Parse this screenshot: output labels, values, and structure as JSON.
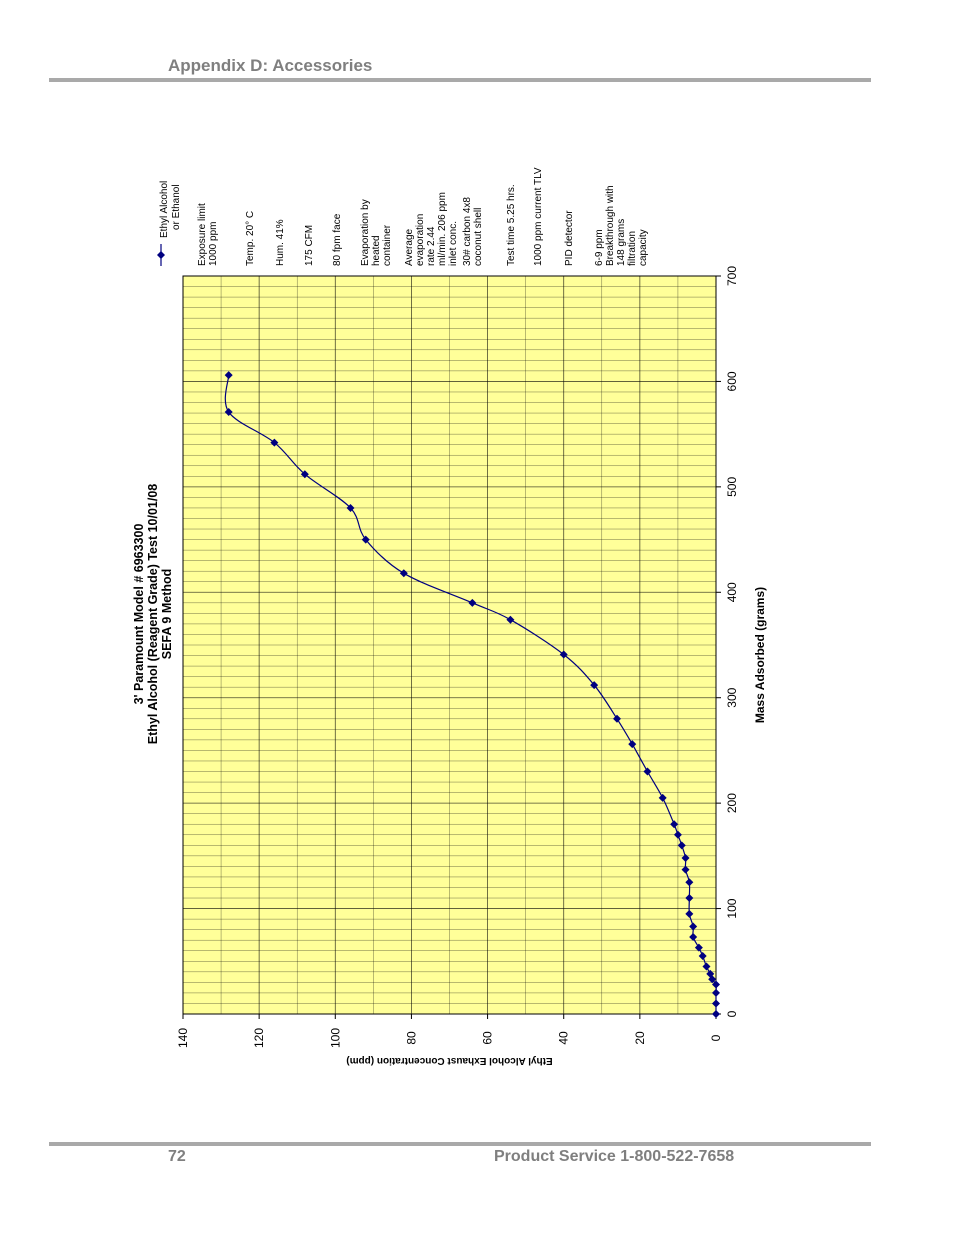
{
  "header": {
    "title": "Appendix D: Accessories"
  },
  "footer": {
    "page_number": "72",
    "service": "Product Service 1-800-522-7658"
  },
  "chart_data": {
    "type": "line",
    "title": [
      "3' Paramount Model # 6963300",
      "Ethyl Alcohol (Reagent Grade) Test  10/01/08",
      "SEFA 9 Method"
    ],
    "xlabel": "Mass Adsorbed (grams)",
    "ylabel": "Ethyl Alcohol Exhaust Concentration (ppm)",
    "xlim": [
      0,
      700
    ],
    "ylim": [
      0,
      140
    ],
    "x_ticks": [
      "0",
      "100",
      "200",
      "300",
      "400",
      "500",
      "600",
      "700"
    ],
    "y_ticks": [
      "0",
      "20",
      "40",
      "60",
      "80",
      "100",
      "120",
      "140"
    ],
    "grid": true,
    "plot_background": "#ffff99",
    "series_color": "#000080",
    "legend_position": "right",
    "series": [
      {
        "name": "Ethyl Alcohol or Ethanol",
        "points": [
          [
            0,
            0
          ],
          [
            10,
            0
          ],
          [
            20,
            0
          ],
          [
            28,
            0
          ],
          [
            33,
            1
          ],
          [
            38,
            1.5
          ],
          [
            45,
            2.5
          ],
          [
            55,
            3.5
          ],
          [
            63,
            4.5
          ],
          [
            73,
            6
          ],
          [
            83,
            6
          ],
          [
            95,
            7
          ],
          [
            110,
            7
          ],
          [
            125,
            7
          ],
          [
            137,
            8
          ],
          [
            148,
            8
          ],
          [
            160,
            9
          ],
          [
            170,
            10
          ],
          [
            180,
            11
          ],
          [
            205,
            14
          ],
          [
            230,
            18
          ],
          [
            256,
            22
          ],
          [
            280,
            26
          ],
          [
            312,
            32
          ],
          [
            341,
            40
          ],
          [
            374,
            54
          ],
          [
            390,
            64
          ],
          [
            418,
            82
          ],
          [
            450,
            92
          ],
          [
            480,
            96
          ],
          [
            512,
            108
          ],
          [
            542,
            116
          ],
          [
            571,
            128
          ],
          [
            606,
            128
          ]
        ]
      }
    ],
    "notes": [
      "Exposure limit 1000 ppm",
      "Temp. 20° C",
      "Hum. 41%",
      "175 CFM",
      "80 fpm face",
      "Evaporation by heated container",
      "Average evaporation rate 2.44 ml/min. 206 ppm inlet conc.",
      "30# carbon 4x8 coconut shell",
      "Test time 5.25 hrs.",
      "1000 ppm current TLV",
      "PID detector",
      "6-9 ppm Breakthrough with 148 grams filtration capacity"
    ]
  }
}
